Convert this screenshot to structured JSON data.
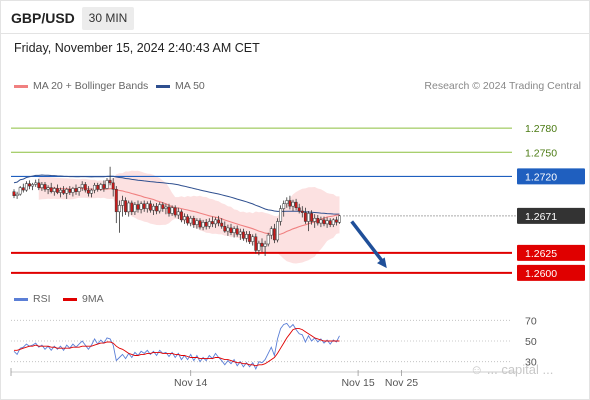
{
  "header": {
    "pair": "GBP/USD",
    "timeframe": "30 MIN",
    "datetime": "Friday, November 15, 2024 2:40:43 AM CET"
  },
  "legend": {
    "ma20_bb": {
      "label": "MA 20 + Bollinger Bands",
      "color": "#f08080"
    },
    "ma50": {
      "label": "MA 50",
      "color": "#2e4f8f"
    },
    "credit": "Research © 2024 Trading Central"
  },
  "rsi_legend": {
    "rsi": {
      "label": "RSI",
      "color": "#5b7fd6"
    },
    "ma9": {
      "label": "9MA",
      "color": "#e00000"
    }
  },
  "watermark": "☺ ... capital ...",
  "colors": {
    "bull": "#ffffff",
    "bear": "#cc1a1a",
    "wick": "#333333",
    "band": "#fcdcdc"
  },
  "chart_data": {
    "type": "candlestick",
    "y_range": [
      1.2585,
      1.2815
    ],
    "levels": [
      {
        "value": 1.278,
        "label": "1.2780",
        "kind": "resistance_minor",
        "color": "#8cbf3f"
      },
      {
        "value": 1.275,
        "label": "1.2750",
        "kind": "resistance_minor",
        "color": "#8cbf3f"
      },
      {
        "value": 1.272,
        "label": "1.2720",
        "kind": "pivot",
        "color": "#1f5fbf"
      },
      {
        "value": 1.2671,
        "label": "1.2671",
        "kind": "last_price",
        "color": "#333333"
      },
      {
        "value": 1.2625,
        "label": "1.2625",
        "kind": "support",
        "color": "#e00000"
      },
      {
        "value": 1.26,
        "label": "1.2600",
        "kind": "support",
        "color": "#e00000"
      }
    ],
    "x_ticks": [
      {
        "index": 57,
        "label": "Nov 14"
      },
      {
        "index": 111,
        "label": "Nov 15"
      },
      {
        "index": 125,
        "label": "Nov 25"
      }
    ],
    "candles": [
      [
        1.2701,
        1.2704,
        1.2693,
        1.2696
      ],
      [
        1.2696,
        1.2701,
        1.2692,
        1.2698
      ],
      [
        1.2698,
        1.2708,
        1.2696,
        1.2706
      ],
      [
        1.2706,
        1.2711,
        1.27,
        1.2703
      ],
      [
        1.2703,
        1.2714,
        1.2701,
        1.2711
      ],
      [
        1.2711,
        1.2715,
        1.2704,
        1.2708
      ],
      [
        1.2708,
        1.2712,
        1.2703,
        1.271
      ],
      [
        1.271,
        1.2716,
        1.2707,
        1.2712
      ],
      [
        1.2712,
        1.2717,
        1.2703,
        1.2706
      ],
      [
        1.2706,
        1.2713,
        1.2702,
        1.271
      ],
      [
        1.271,
        1.2713,
        1.2701,
        1.2704
      ],
      [
        1.2704,
        1.2709,
        1.2698,
        1.2706
      ],
      [
        1.2706,
        1.2712,
        1.2699,
        1.2701
      ],
      [
        1.2701,
        1.2707,
        1.2696,
        1.2705
      ],
      [
        1.2705,
        1.271,
        1.2698,
        1.27
      ],
      [
        1.27,
        1.2706,
        1.2694,
        1.2703
      ],
      [
        1.2703,
        1.2708,
        1.2697,
        1.2699
      ],
      [
        1.2699,
        1.2706,
        1.2692,
        1.2704
      ],
      [
        1.2704,
        1.2708,
        1.2697,
        1.27
      ],
      [
        1.27,
        1.2707,
        1.2695,
        1.2705
      ],
      [
        1.2705,
        1.271,
        1.2697,
        1.2701
      ],
      [
        1.2701,
        1.2707,
        1.2696,
        1.2706
      ],
      [
        1.2706,
        1.2714,
        1.2702,
        1.271
      ],
      [
        1.271,
        1.2713,
        1.27,
        1.2703
      ],
      [
        1.2703,
        1.2708,
        1.2695,
        1.2699
      ],
      [
        1.2699,
        1.2705,
        1.2694,
        1.2703
      ],
      [
        1.2703,
        1.2712,
        1.2699,
        1.2709
      ],
      [
        1.2709,
        1.2712,
        1.2701,
        1.2704
      ],
      [
        1.2704,
        1.2712,
        1.2702,
        1.271
      ],
      [
        1.271,
        1.2715,
        1.2701,
        1.2705
      ],
      [
        1.2705,
        1.2718,
        1.2704,
        1.2715
      ],
      [
        1.2715,
        1.2732,
        1.2709,
        1.2712
      ],
      [
        1.2712,
        1.2718,
        1.2695,
        1.2704
      ],
      [
        1.2704,
        1.2708,
        1.2662,
        1.2676
      ],
      [
        1.2676,
        1.269,
        1.265,
        1.2684
      ],
      [
        1.2684,
        1.2696,
        1.267,
        1.269
      ],
      [
        1.269,
        1.2694,
        1.2672,
        1.2676
      ],
      [
        1.2676,
        1.269,
        1.267,
        1.2687
      ],
      [
        1.2687,
        1.269,
        1.2672,
        1.2676
      ],
      [
        1.2676,
        1.2688,
        1.2672,
        1.2685
      ],
      [
        1.2685,
        1.269,
        1.2675,
        1.2679
      ],
      [
        1.2679,
        1.2689,
        1.2674,
        1.2686
      ],
      [
        1.2686,
        1.269,
        1.2676,
        1.268
      ],
      [
        1.268,
        1.2689,
        1.2675,
        1.2686
      ],
      [
        1.2686,
        1.269,
        1.2675,
        1.2678
      ],
      [
        1.2678,
        1.2686,
        1.2672,
        1.2683
      ],
      [
        1.2683,
        1.2687,
        1.2673,
        1.2677
      ],
      [
        1.2677,
        1.2688,
        1.2674,
        1.2685
      ],
      [
        1.2685,
        1.2688,
        1.2676,
        1.268
      ],
      [
        1.268,
        1.2686,
        1.2673,
        1.2682
      ],
      [
        1.2682,
        1.2686,
        1.267,
        1.2674
      ],
      [
        1.2674,
        1.2684,
        1.2671,
        1.2681
      ],
      [
        1.2681,
        1.2684,
        1.2669,
        1.2672
      ],
      [
        1.2672,
        1.2681,
        1.2667,
        1.2676
      ],
      [
        1.2676,
        1.2679,
        1.2663,
        1.2666
      ],
      [
        1.2666,
        1.2674,
        1.2661,
        1.267
      ],
      [
        1.267,
        1.2673,
        1.2659,
        1.2662
      ],
      [
        1.2662,
        1.2671,
        1.2658,
        1.2668
      ],
      [
        1.2668,
        1.2671,
        1.2656,
        1.266
      ],
      [
        1.266,
        1.2668,
        1.2655,
        1.2665
      ],
      [
        1.2665,
        1.2668,
        1.2654,
        1.2657
      ],
      [
        1.2657,
        1.2666,
        1.2653,
        1.2663
      ],
      [
        1.2663,
        1.2667,
        1.2654,
        1.2658
      ],
      [
        1.2658,
        1.2668,
        1.2655,
        1.2664
      ],
      [
        1.2664,
        1.267,
        1.2657,
        1.2661
      ],
      [
        1.2661,
        1.2669,
        1.2656,
        1.2666
      ],
      [
        1.2666,
        1.2671,
        1.2658,
        1.2662
      ],
      [
        1.2662,
        1.2668,
        1.2655,
        1.2658
      ],
      [
        1.2658,
        1.2664,
        1.265,
        1.2652
      ],
      [
        1.2652,
        1.266,
        1.2646,
        1.2656
      ],
      [
        1.2656,
        1.2661,
        1.2647,
        1.265
      ],
      [
        1.265,
        1.2658,
        1.2644,
        1.2655
      ],
      [
        1.2655,
        1.2659,
        1.2645,
        1.2648
      ],
      [
        1.2648,
        1.2655,
        1.2641,
        1.2651
      ],
      [
        1.2651,
        1.2655,
        1.264,
        1.2643
      ],
      [
        1.2643,
        1.2652,
        1.2638,
        1.2648
      ],
      [
        1.2648,
        1.2652,
        1.2636,
        1.2639
      ],
      [
        1.2639,
        1.2648,
        1.2634,
        1.2645
      ],
      [
        1.2645,
        1.2649,
        1.2624,
        1.2628
      ],
      [
        1.2628,
        1.264,
        1.2622,
        1.2637
      ],
      [
        1.2637,
        1.2643,
        1.2626,
        1.2633
      ],
      [
        1.2633,
        1.264,
        1.2621,
        1.2636
      ],
      [
        1.2636,
        1.265,
        1.2633,
        1.2647
      ],
      [
        1.2647,
        1.2658,
        1.2642,
        1.2655
      ],
      [
        1.2655,
        1.2661,
        1.2637,
        1.2641
      ],
      [
        1.2641,
        1.2668,
        1.2638,
        1.2664
      ],
      [
        1.2664,
        1.2684,
        1.2659,
        1.268
      ],
      [
        1.268,
        1.269,
        1.267,
        1.2686
      ],
      [
        1.2686,
        1.2694,
        1.2681,
        1.269
      ],
      [
        1.269,
        1.2696,
        1.2679,
        1.2683
      ],
      [
        1.2683,
        1.2691,
        1.2677,
        1.2688
      ],
      [
        1.2688,
        1.2692,
        1.2678,
        1.2681
      ],
      [
        1.2681,
        1.2686,
        1.2674,
        1.2677
      ],
      [
        1.2677,
        1.2683,
        1.2669,
        1.2675
      ],
      [
        1.2675,
        1.2681,
        1.2661,
        1.2664
      ],
      [
        1.2664,
        1.2677,
        1.2652,
        1.2674
      ],
      [
        1.2674,
        1.2678,
        1.266,
        1.2664
      ],
      [
        1.2664,
        1.2673,
        1.2656,
        1.2668
      ],
      [
        1.2668,
        1.2672,
        1.2659,
        1.2662
      ],
      [
        1.2662,
        1.267,
        1.2657,
        1.2666
      ],
      [
        1.2666,
        1.267,
        1.2658,
        1.2661
      ],
      [
        1.2661,
        1.2669,
        1.2656,
        1.2665
      ],
      [
        1.2665,
        1.2668,
        1.2657,
        1.266
      ],
      [
        1.266,
        1.2668,
        1.2657,
        1.2666
      ],
      [
        1.2666,
        1.267,
        1.2659,
        1.2663
      ],
      [
        1.2663,
        1.2672,
        1.2661,
        1.2671
      ]
    ],
    "forecast_arrow": {
      "from_index": 107,
      "from_value": 1.2669,
      "to_index": 118,
      "to_value": 1.2606,
      "color": "#1f4f99"
    },
    "rsi": {
      "y_range": [
        20,
        80
      ],
      "ticks": [
        70,
        50,
        30
      ],
      "rsi_values": [
        40,
        37,
        43,
        44,
        47,
        45,
        46,
        48,
        44,
        46,
        42,
        45,
        41,
        45,
        42,
        45,
        41,
        46,
        43,
        47,
        44,
        47,
        50,
        46,
        42,
        46,
        52,
        47,
        51,
        48,
        53,
        52,
        46,
        31,
        34,
        37,
        33,
        38,
        34,
        39,
        36,
        40,
        38,
        41,
        37,
        40,
        36,
        41,
        38,
        39,
        35,
        39,
        34,
        38,
        32,
        36,
        32,
        37,
        31,
        36,
        30,
        34,
        31,
        36,
        33,
        38,
        34,
        31,
        27,
        31,
        28,
        32,
        26,
        30,
        25,
        29,
        25,
        29,
        23,
        30,
        29,
        32,
        38,
        44,
        36,
        52,
        62,
        66,
        67,
        63,
        66,
        61,
        57,
        56,
        49,
        55,
        50,
        53,
        49,
        52,
        48,
        51,
        47,
        51,
        49,
        55
      ],
      "ma9_values": [
        41,
        41,
        42,
        43,
        44,
        45,
        45,
        46,
        45,
        45,
        45,
        45,
        44,
        44,
        43,
        43,
        43,
        43,
        43,
        44,
        44,
        44,
        45,
        45,
        45,
        45,
        46,
        47,
        48,
        48,
        49,
        49,
        48,
        45,
        43,
        42,
        40,
        38,
        37,
        36,
        36,
        37,
        37,
        38,
        38,
        39,
        39,
        39,
        38,
        38,
        38,
        38,
        37,
        37,
        36,
        36,
        35,
        34,
        34,
        34,
        33,
        33,
        33,
        33,
        33,
        34,
        34,
        33,
        32,
        32,
        31,
        30,
        29,
        29,
        28,
        28,
        27,
        27,
        26,
        27,
        27,
        28,
        30,
        32,
        34,
        38,
        43,
        48,
        53,
        57,
        61,
        62,
        62,
        61,
        59,
        57,
        55,
        53,
        52,
        51,
        50,
        50,
        50,
        50,
        50,
        50
      ]
    }
  }
}
